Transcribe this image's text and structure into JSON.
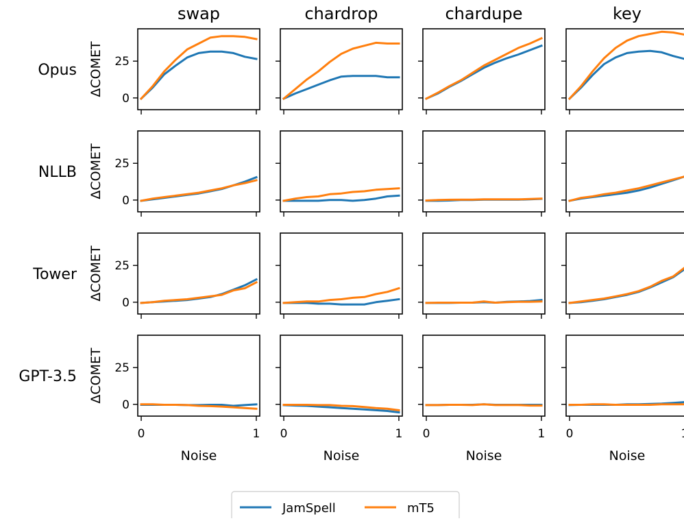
{
  "chart_data": {
    "type": "line",
    "columns": [
      "swap",
      "chardrop",
      "chardupe",
      "key"
    ],
    "rows": [
      "Opus",
      "NLLB",
      "Tower",
      "GPT-3.5"
    ],
    "ylabel": "ΔCOMET",
    "xlabel": "Noise",
    "x": [
      0,
      0.1,
      0.2,
      0.3,
      0.4,
      0.5,
      0.6,
      0.7,
      0.8,
      0.9,
      1.0
    ],
    "xlim": [
      -0.03,
      1.03
    ],
    "ylim": [
      -8,
      47
    ],
    "xticks": [
      0,
      1
    ],
    "yticks": [
      0,
      25
    ],
    "series": [
      {
        "name": "JamSpell",
        "color": "#1f77b4"
      },
      {
        "name": "mT5",
        "color": "#ff7f0e"
      }
    ],
    "values": {
      "Opus": {
        "swap": {
          "JamSpell": [
            -0.5,
            7,
            16,
            22,
            27.5,
            30.5,
            31.5,
            31.5,
            30.5,
            28,
            26.5
          ],
          "mT5": [
            -0.5,
            8,
            18,
            26,
            33,
            37,
            41,
            42,
            42,
            41.5,
            40
          ]
        },
        "chardrop": {
          "JamSpell": [
            -0.5,
            3,
            6,
            9,
            12,
            14.5,
            15,
            15,
            15,
            14,
            14
          ],
          "mT5": [
            -0.5,
            6,
            12.5,
            18,
            24.5,
            30,
            33.5,
            35.5,
            37.5,
            37,
            37
          ]
        },
        "chardupe": {
          "JamSpell": [
            -0.5,
            3,
            7.5,
            11.5,
            16,
            20.5,
            24,
            27,
            29.5,
            32.5,
            35.5
          ],
          "mT5": [
            -0.5,
            3.5,
            8,
            12,
            17,
            22,
            26,
            30,
            34,
            37,
            40.5
          ]
        },
        "key": {
          "JamSpell": [
            -0.5,
            7,
            15.5,
            23,
            27.5,
            30.5,
            31.5,
            32,
            31,
            28.5,
            26.5
          ],
          "mT5": [
            -0.5,
            8,
            18,
            27,
            34,
            39,
            42,
            43.5,
            45,
            44.5,
            43
          ]
        }
      },
      "NLLB": {
        "swap": {
          "JamSpell": [
            -0.5,
            0.5,
            1.5,
            2.5,
            3.5,
            4.5,
            6,
            7.5,
            10,
            12.5,
            15.5
          ],
          "mT5": [
            -0.5,
            1,
            2,
            3,
            4,
            5,
            6.5,
            8,
            10,
            11.5,
            13.5
          ]
        },
        "chardrop": {
          "JamSpell": [
            -0.5,
            -0.5,
            -0.5,
            -0.5,
            0,
            0,
            -0.5,
            0,
            1,
            2.5,
            3
          ],
          "mT5": [
            -0.5,
            1,
            2,
            2.5,
            4,
            4.5,
            5.5,
            6,
            7,
            7.5,
            8
          ]
        },
        "chardupe": {
          "JamSpell": [
            -0.5,
            -0.5,
            -0.3,
            0,
            0,
            0.3,
            0.3,
            0.3,
            0.3,
            0.5,
            0.8
          ],
          "mT5": [
            -0.3,
            0,
            0.2,
            0.3,
            0.3,
            0.5,
            0.5,
            0.5,
            0.5,
            0.7,
            1
          ]
        },
        "key": {
          "JamSpell": [
            -0.5,
            1,
            2,
            3,
            4,
            5,
            6.5,
            8.5,
            11,
            13.5,
            16
          ],
          "mT5": [
            -0.5,
            1.5,
            2.5,
            4,
            5,
            6.5,
            8,
            10,
            12,
            14,
            16
          ]
        }
      },
      "Tower": {
        "swap": {
          "JamSpell": [
            -0.5,
            0,
            0.5,
            1,
            1.5,
            2.5,
            3.5,
            5.5,
            8.5,
            11.5,
            15.5
          ],
          "mT5": [
            -0.5,
            0,
            1,
            1.5,
            2,
            3,
            4,
            5,
            8,
            9.5,
            13.5
          ]
        },
        "chardrop": {
          "JamSpell": [
            -0.5,
            -0.5,
            -0.5,
            -1,
            -1,
            -1.5,
            -1.5,
            -1.5,
            0,
            1,
            2
          ],
          "mT5": [
            -0.5,
            0,
            0.5,
            0.5,
            1.5,
            2,
            3,
            3.5,
            5.5,
            7,
            9.5
          ]
        },
        "chardupe": {
          "JamSpell": [
            -0.5,
            -0.5,
            -0.5,
            -0.3,
            -0.3,
            0,
            -0.3,
            0.3,
            0.5,
            0.8,
            1.5
          ],
          "mT5": [
            -0.5,
            -0.3,
            -0.3,
            -0.3,
            -0.3,
            0.5,
            -0.3,
            0,
            0.3,
            0.3,
            0.5
          ]
        },
        "key": {
          "JamSpell": [
            -0.5,
            0,
            1,
            2,
            3.5,
            5,
            7,
            10,
            13.5,
            17,
            22.5
          ],
          "mT5": [
            -0.5,
            0.5,
            1.5,
            2.5,
            4,
            5.5,
            7.5,
            10.5,
            14.5,
            17.5,
            23.5
          ]
        }
      },
      "GPT-3.5": {
        "swap": {
          "JamSpell": [
            -0.3,
            -0.3,
            -0.3,
            -0.3,
            -0.5,
            -0.5,
            -0.3,
            -0.3,
            -1,
            -0.5,
            0
          ],
          "mT5": [
            0,
            0,
            -0.3,
            -0.3,
            -0.5,
            -1,
            -1.2,
            -1.5,
            -2,
            -2.5,
            -3
          ]
        },
        "chardrop": {
          "JamSpell": [
            -0.5,
            -0.8,
            -1,
            -1.5,
            -2,
            -2.5,
            -3,
            -3.5,
            -4,
            -4.5,
            -5.5
          ],
          "mT5": [
            -0.3,
            -0.3,
            -0.3,
            -0.5,
            -0.5,
            -1,
            -1.2,
            -1.8,
            -2.5,
            -3,
            -4
          ]
        },
        "chardupe": {
          "JamSpell": [
            -0.5,
            -0.5,
            -0.3,
            -0.3,
            -0.3,
            0,
            -0.3,
            -0.3,
            -0.3,
            -0.3,
            -0.3
          ],
          "mT5": [
            -0.5,
            -0.5,
            -0.3,
            -0.3,
            -0.5,
            0,
            -0.5,
            -0.5,
            -0.5,
            -0.8,
            -0.8
          ]
        },
        "key": {
          "JamSpell": [
            -0.5,
            -0.3,
            -0.3,
            -0.3,
            -0.3,
            0,
            0,
            0.3,
            0.5,
            1,
            1.5
          ],
          "mT5": [
            -0.3,
            -0.3,
            0,
            0,
            -0.3,
            -0.3,
            -0.3,
            -0.3,
            0,
            0,
            0
          ]
        }
      }
    },
    "legend": "bottom-center",
    "grid": false
  }
}
